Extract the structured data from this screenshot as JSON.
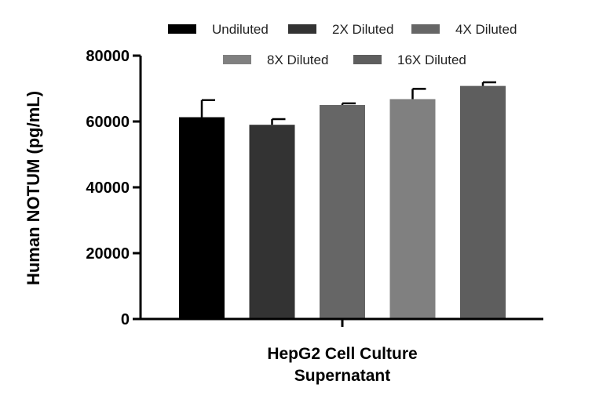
{
  "chart_data": {
    "type": "bar",
    "title": "",
    "xlabel": "",
    "ylabel": "Human NOTUM (pg/mL)",
    "group_label_lines": [
      "HepG2 Cell Culture",
      "Supernatant"
    ],
    "ylim": [
      0,
      80000
    ],
    "yticks": [
      0,
      20000,
      40000,
      60000,
      80000
    ],
    "ytick_labels": [
      "0",
      "20000",
      "40000",
      "60000",
      "80000"
    ],
    "grid": false,
    "legend_position": "top",
    "series": [
      {
        "name": "Undiluted",
        "value": 61300,
        "error": 5200,
        "color": "#000000"
      },
      {
        "name": "2X Diluted",
        "value": 59000,
        "error": 1700,
        "color": "#333333"
      },
      {
        "name": "4X Diluted",
        "value": 65000,
        "error": 500,
        "color": "#666666"
      },
      {
        "name": "8X Diluted",
        "value": 66800,
        "error": 3100,
        "color": "#808080"
      },
      {
        "name": "16X Diluted",
        "value": 70800,
        "error": 1100,
        "color": "#5e5e5e"
      }
    ]
  }
}
